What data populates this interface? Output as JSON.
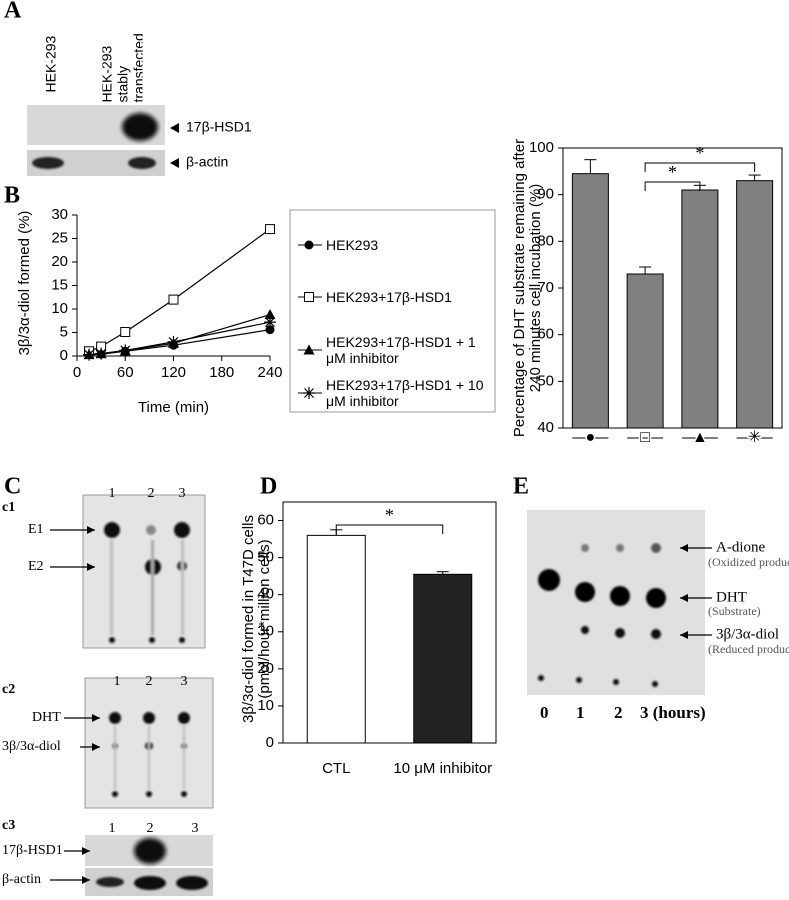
{
  "panel_labels": [
    "A",
    "B",
    "C",
    "D",
    "E"
  ],
  "blot_a": {
    "lanes": [
      "HEK-293",
      "HEK-293 stably transfected"
    ],
    "bands": [
      "17β-HSD1",
      "β-actin"
    ]
  },
  "tlc_c1": {
    "label": "c1",
    "lanes": [
      "1",
      "2",
      "3"
    ],
    "spots": [
      "E1",
      "E2"
    ]
  },
  "tlc_c2": {
    "label": "c2",
    "lanes": [
      "1",
      "2",
      "3"
    ],
    "spots": [
      "DHT",
      "3β/3α-diol"
    ]
  },
  "blot_c3": {
    "label": "c3",
    "lanes": [
      "1",
      "2",
      "3"
    ],
    "bands": [
      "17β-HSD1",
      "β-actin"
    ]
  },
  "tlc_e": {
    "spots": [
      {
        "name": "A-dione",
        "note": "(Oxidized product)"
      },
      {
        "name": "DHT",
        "note": "(Substrate)"
      },
      {
        "name": "3β/3α-diol",
        "note": "(Reduced products)"
      }
    ],
    "lanes": [
      "0",
      "1",
      "2",
      "3 (hours)"
    ]
  },
  "chart_data": [
    {
      "type": "line",
      "x_label": "Time (min)",
      "y_label": "3β/3α-diol formed (%)",
      "x": [
        15,
        30,
        60,
        120,
        240
      ],
      "xlim": [
        0,
        240
      ],
      "xticks": [
        0,
        60,
        120,
        180,
        240
      ],
      "ylim": [
        0,
        30
      ],
      "yticks": [
        0,
        5,
        10,
        15,
        20,
        25,
        30
      ],
      "series": [
        {
          "name": "HEK293",
          "color": "#000000",
          "marker": "circle",
          "values": [
            0.3,
            0.4,
            1.0,
            2.3,
            5.6
          ]
        },
        {
          "name": "HEK293+17β-HSD1",
          "color": "#000000",
          "marker": "square",
          "values": [
            1.0,
            2.0,
            5.1,
            12.0,
            27.0
          ]
        },
        {
          "name": "HEK293+17β-HSD1 + 1 μM inhibitor",
          "color": "#000000",
          "marker": "triangle",
          "values": [
            0.3,
            0.5,
            1.1,
            2.7,
            8.8
          ]
        },
        {
          "name": "HEK293+17β-HSD1 + 10 μM inhibitor",
          "color": "#000000",
          "marker": "asterisk",
          "values": [
            0.3,
            0.5,
            1.2,
            3.0,
            7.2
          ]
        }
      ]
    },
    {
      "type": "bar",
      "y_label": "Percentage of DHT substrate remaining after 240 minutes cell incubation (%)",
      "categories": [
        "●",
        "□",
        "▲",
        "✳"
      ],
      "values": [
        94.5,
        73,
        91,
        93
      ],
      "errors": [
        3,
        1.5,
        1,
        1.2
      ],
      "color": "#808080",
      "ylim": [
        40,
        100
      ],
      "yticks": [
        40,
        50,
        60,
        70,
        80,
        90,
        100
      ],
      "annotations": [
        "*",
        "*"
      ]
    },
    {
      "type": "bar",
      "y_label": "3β/3α-diol formed in T47D cells (pmol/hour*million cells)",
      "categories": [
        "CTL",
        "10 μM inhibitor"
      ],
      "values": [
        56,
        45.5
      ],
      "errors": [
        1.5,
        0.7
      ],
      "colors": [
        "#ffffff",
        "#222222"
      ],
      "ylim": [
        0,
        65
      ],
      "yticks": [
        0,
        10,
        20,
        30,
        40,
        50,
        60
      ],
      "annotations": [
        "*"
      ]
    }
  ]
}
